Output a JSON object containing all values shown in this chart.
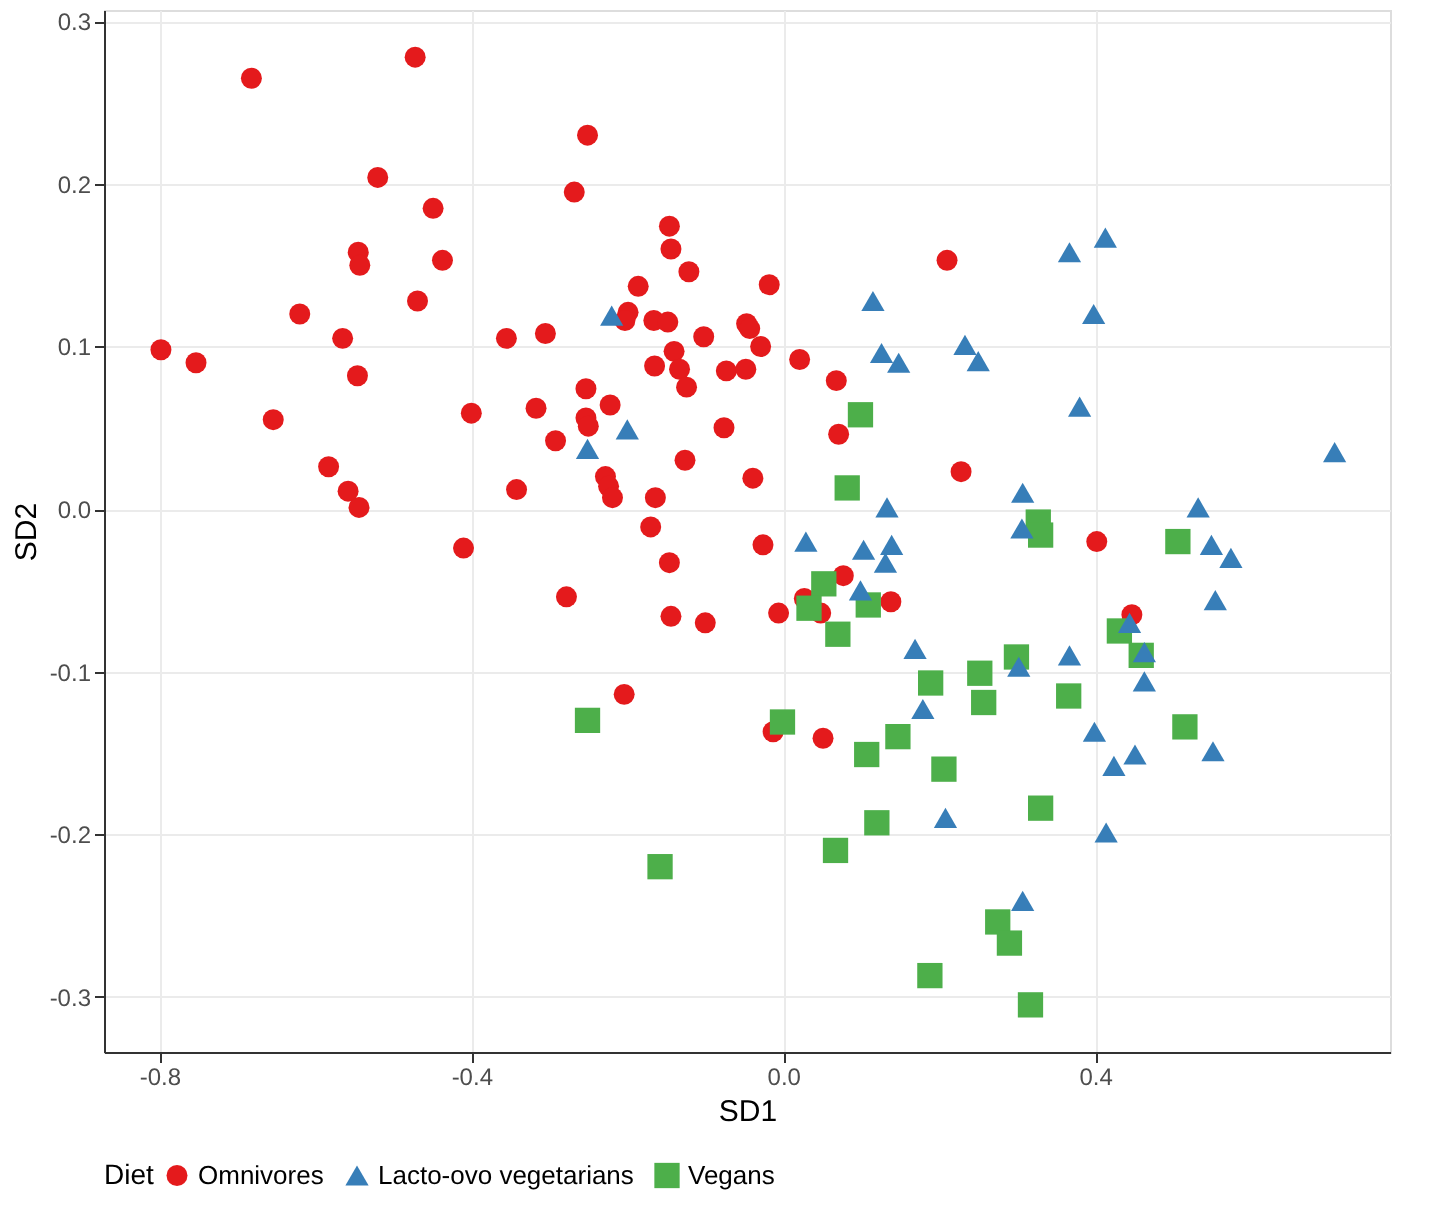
{
  "chart_data": {
    "type": "scatter",
    "xlabel": "SD1",
    "ylabel": "SD2",
    "legend_title": "Diet",
    "legend": "bottom",
    "grid": true,
    "xlim": [
      -0.871,
      0.778
    ],
    "ylim": [
      -0.334,
      0.307
    ],
    "xticks": [
      -0.8,
      -0.4,
      {
        "value": 0,
        "label": "0.0"
      },
      0.4
    ],
    "yticks": [
      -0.3,
      -0.2,
      -0.1,
      {
        "value": 0,
        "label": "0.0"
      },
      0.1,
      0.2,
      0.3
    ],
    "series": [
      {
        "name": "Omnivores",
        "color": "#e41a1c",
        "marker": "circle",
        "x": [
          -0.682,
          -0.472,
          -0.52,
          -0.449,
          -0.545,
          -0.543,
          -0.437,
          -0.469,
          -0.62,
          -0.565,
          -0.798,
          -0.753,
          -0.546,
          -0.355,
          -0.654,
          -0.4,
          -0.583,
          -0.558,
          -0.544,
          -0.342,
          -0.41,
          -0.251,
          -0.268,
          -0.146,
          -0.144,
          -0.121,
          -0.186,
          -0.018,
          0.21,
          -0.199,
          -0.203,
          -0.166,
          -0.148,
          -0.305,
          -0.102,
          -0.047,
          -0.043,
          -0.029,
          0.021,
          -0.14,
          -0.165,
          -0.133,
          -0.073,
          -0.048,
          0.068,
          -0.124,
          -0.253,
          -0.317,
          -0.222,
          -0.253,
          -0.25,
          -0.292,
          -0.076,
          0.071,
          -0.126,
          -0.228,
          -0.224,
          -0.219,
          -0.039,
          -0.164,
          -0.17,
          -0.146,
          -0.026,
          0.077,
          0.228,
          0.402,
          -0.278,
          0.027,
          0.048,
          -0.144,
          -0.1,
          -0.006,
          0.138,
          -0.204,
          -0.013,
          0.051,
          0.447
        ],
        "values": [
          0.265,
          0.278,
          0.204,
          0.185,
          0.158,
          0.15,
          0.153,
          0.128,
          0.12,
          0.105,
          0.098,
          0.09,
          0.082,
          0.105,
          0.055,
          0.059,
          0.026,
          0.011,
          0.001,
          0.012,
          -0.024,
          0.23,
          0.195,
          0.174,
          0.16,
          0.146,
          0.137,
          0.138,
          0.153,
          0.121,
          0.116,
          0.116,
          0.115,
          0.108,
          0.106,
          0.114,
          0.111,
          0.1,
          0.092,
          0.097,
          0.088,
          0.086,
          0.085,
          0.086,
          0.079,
          0.075,
          0.074,
          0.062,
          0.064,
          0.056,
          0.051,
          0.042,
          0.05,
          0.046,
          0.03,
          0.02,
          0.014,
          0.007,
          0.019,
          0.007,
          -0.011,
          -0.033,
          -0.022,
          -0.041,
          0.023,
          -0.02,
          -0.054,
          -0.055,
          -0.064,
          -0.066,
          -0.07,
          -0.064,
          -0.057,
          -0.114,
          -0.137,
          -0.141,
          -0.065
        ]
      },
      {
        "name": "Lacto-ovo vegetarians",
        "color": "#377eb8",
        "marker": "triangle",
        "x": [
          -0.22,
          0.115,
          0.126,
          0.148,
          -0.2,
          -0.251,
          0.133,
          0.029,
          0.103,
          0.139,
          0.131,
          0.367,
          0.413,
          0.398,
          0.233,
          0.25,
          0.38,
          0.707,
          0.307,
          0.532,
          0.306,
          0.549,
          0.574,
          0.099,
          0.169,
          0.179,
          0.208,
          0.554,
          0.444,
          0.463,
          0.367,
          0.302,
          0.463,
          0.399,
          0.451,
          0.424,
          0.551,
          0.414,
          0.307
        ],
        "values": [
          0.119,
          0.128,
          0.096,
          0.09,
          0.049,
          0.037,
          0.001,
          -0.02,
          -0.025,
          -0.022,
          -0.033,
          0.158,
          0.167,
          0.12,
          0.101,
          0.091,
          0.063,
          0.035,
          0.01,
          0.001,
          -0.012,
          -0.022,
          -0.03,
          -0.05,
          -0.086,
          -0.123,
          -0.19,
          -0.056,
          -0.07,
          -0.088,
          -0.09,
          -0.097,
          -0.106,
          -0.137,
          -0.151,
          -0.158,
          -0.149,
          -0.199,
          -0.241
        ]
      },
      {
        "name": "Vegans",
        "color": "#4daf4a",
        "marker": "square",
        "x": [
          0.099,
          0.082,
          0.327,
          0.33,
          0.506,
          0.052,
          0.033,
          0.109,
          0.07,
          0.189,
          -0.251,
          -0.001,
          0.147,
          0.107,
          0.206,
          0.12,
          0.067,
          -0.158,
          0.188,
          0.431,
          0.459,
          0.299,
          0.252,
          0.257,
          0.366,
          0.515,
          0.33,
          0.275,
          0.29,
          0.317
        ],
        "values": [
          0.058,
          0.013,
          -0.008,
          -0.016,
          -0.02,
          -0.046,
          -0.061,
          -0.059,
          -0.077,
          -0.107,
          -0.13,
          -0.131,
          -0.14,
          -0.151,
          -0.16,
          -0.193,
          -0.21,
          -0.22,
          -0.287,
          -0.075,
          -0.09,
          -0.091,
          -0.101,
          -0.119,
          -0.115,
          -0.134,
          -0.184,
          -0.254,
          -0.267,
          -0.305
        ]
      }
    ]
  }
}
